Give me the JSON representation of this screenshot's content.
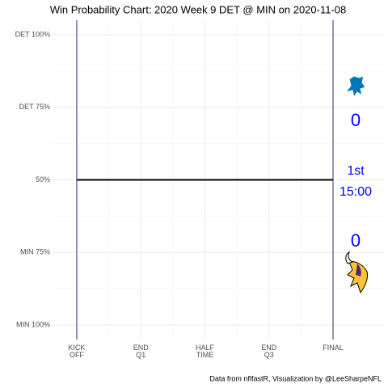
{
  "chart_data": {
    "type": "line",
    "title": "Win Probability Chart: 2020 Week 9 DET @ MIN on 2020-11-08",
    "x": [
      0,
      3600
    ],
    "series": [
      {
        "values": [
          50,
          50
        ],
        "color": "#000000"
      }
    ],
    "xlim": [
      -340,
      4315
    ],
    "xticks": [
      {
        "value": 0,
        "label": "KICK\nOFF"
      },
      {
        "value": 900,
        "label": "END\nQ1"
      },
      {
        "value": 1800,
        "label": "HALF\nTIME"
      },
      {
        "value": 2700,
        "label": "END\nQ3"
      },
      {
        "value": 3600,
        "label": "FINAL"
      }
    ],
    "ylim": [
      -5,
      105
    ],
    "yticks": [
      {
        "value": 100,
        "label": "DET 100%"
      },
      {
        "value": 75,
        "label": "DET 75%"
      },
      {
        "value": 50,
        "label": "50%"
      },
      {
        "value": 25,
        "label": "MIN 75%"
      },
      {
        "value": 0,
        "label": "MIN 100%"
      }
    ],
    "grid": true,
    "boundary_color": "#2b2b7a",
    "annotation_color": "#0000ff",
    "annotations": {
      "away_score": "0",
      "quarter": "1st",
      "clock": "15:00",
      "home_score": "0"
    },
    "caption": "Data from nflfastR, Visualization by @LeeSharpeNFL"
  }
}
